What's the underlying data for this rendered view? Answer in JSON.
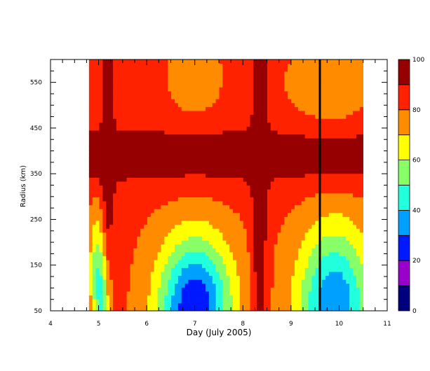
{
  "chart_data": {
    "type": "heatmap",
    "subtype": "filled-contour",
    "xlabel": "Day (July 2005)",
    "ylabel": "Radius (km)",
    "xlim": [
      4,
      11
    ],
    "ylim": [
      50,
      600
    ],
    "x_ticks": [
      4,
      5,
      6,
      7,
      8,
      9,
      10,
      11
    ],
    "y_ticks": [
      50,
      150,
      250,
      350,
      450,
      550
    ],
    "data_x_range": [
      4.8,
      10.5
    ],
    "colorbar": {
      "range": [
        0,
        100
      ],
      "levels": [
        0,
        10,
        20,
        30,
        40,
        50,
        60,
        70,
        80,
        90,
        100
      ],
      "tick_labels": [
        "0",
        "20",
        "40",
        "60",
        "80",
        "100"
      ],
      "colors": [
        "#00007f",
        "#9900cc",
        "#0019ff",
        "#00a0ff",
        "#22ffdd",
        "#88ff66",
        "#ffff00",
        "#ff8c00",
        "#ff2200",
        "#960000"
      ]
    },
    "marker_line": {
      "x": 9.6,
      "color": "#000000"
    },
    "field_summary": "Percentage values contoured over time (day of July 2005) and radius; values near 90-100 dominate radii 300-450 km and during days 5.2 and 8.2-8.5; values drop below 40 at small radii (<120 km) around days 6.3-7.5 and 9.3-10.5."
  },
  "axes": {
    "x_tick_labels": [
      "4",
      "5",
      "6",
      "7",
      "8",
      "9",
      "10",
      "11"
    ],
    "y_tick_labels": [
      "50",
      "150",
      "250",
      "350",
      "450",
      "550"
    ]
  }
}
